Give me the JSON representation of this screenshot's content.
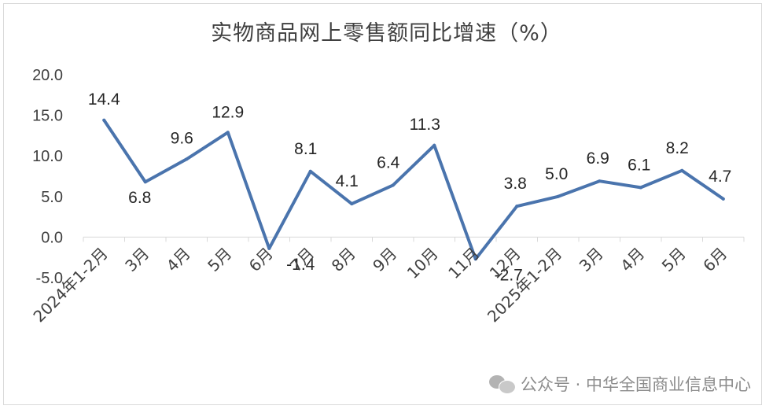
{
  "chart_data": {
    "type": "line",
    "title": "实物商品网上零售额同比增速（%）",
    "categories": [
      "2024年1-2月",
      "3月",
      "4月",
      "5月",
      "6月",
      "7月",
      "8月",
      "9月",
      "10月",
      "11月",
      "12月",
      "2025年1-2月",
      "3月",
      "4月",
      "5月",
      "6月"
    ],
    "series": [
      {
        "values": [
          14.4,
          6.8,
          9.6,
          12.9,
          -1.4,
          8.1,
          4.1,
          6.4,
          11.3,
          -2.7,
          3.8,
          5.0,
          6.9,
          6.1,
          8.2,
          4.7
        ]
      }
    ],
    "data_labels": [
      "14.4",
      "6.8",
      "9.6",
      "12.9",
      "-1.4",
      "8.1",
      "4.1",
      "6.4",
      "11.3",
      "-2.7",
      "3.8",
      "5.0",
      "6.9",
      "6.1",
      "8.2",
      "4.7"
    ],
    "y_ticks": [
      "20.0",
      "15.0",
      "10.0",
      "5.0",
      "0.0",
      "-5.0"
    ],
    "ylim": [
      -5,
      20
    ],
    "grid": false,
    "legend": "none",
    "line_color": "#4a74ad"
  },
  "watermark": {
    "icon": "wechat-icon",
    "text": "公众号 · 中华全国商业信息中心"
  }
}
